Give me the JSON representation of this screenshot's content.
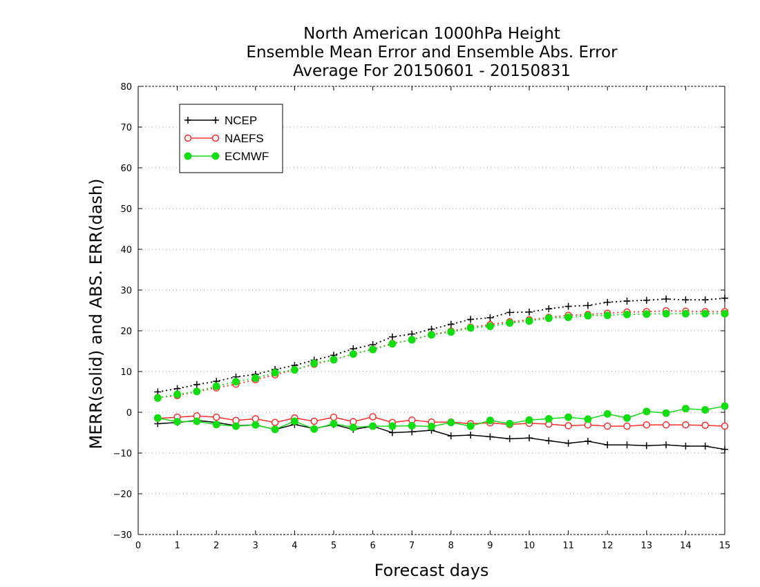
{
  "chart_data": {
    "type": "line",
    "title_lines": [
      "North American 1000hPa Height",
      "Ensemble Mean Error and Ensemble Abs. Error",
      "Average For 20150601 - 20150831"
    ],
    "xlabel": "Forecast days",
    "ylabel": "MERR(solid) and ABS. ERR(dash)",
    "xlim": [
      0,
      15
    ],
    "ylim": [
      -30,
      80
    ],
    "xticks": [
      0,
      1,
      2,
      3,
      4,
      5,
      6,
      7,
      8,
      9,
      10,
      11,
      12,
      13,
      14,
      15
    ],
    "yticks": [
      -30,
      -20,
      -10,
      0,
      10,
      20,
      30,
      40,
      50,
      60,
      70,
      80
    ],
    "grid": true,
    "legend_position": "top-left",
    "x": [
      0.5,
      1,
      1.5,
      2,
      2.5,
      3,
      3.5,
      4,
      4.5,
      5,
      5.5,
      6,
      6.5,
      7,
      7.5,
      8,
      8.5,
      9,
      9.5,
      10,
      10.5,
      11,
      11.5,
      12,
      12.5,
      13,
      13.5,
      14,
      14.5,
      15
    ],
    "series": [
      {
        "name": "NCEP",
        "color": "#000000",
        "marker": "plus",
        "merr": [
          -2.8,
          -2.5,
          -2.0,
          -2.5,
          -3.3,
          -3.1,
          -4.2,
          -3.0,
          -4.0,
          -3.0,
          -4.2,
          -3.4,
          -5.0,
          -4.8,
          -4.4,
          -5.8,
          -5.6,
          -6.0,
          -6.5,
          -6.3,
          -7.0,
          -7.6,
          -7.1,
          -8.0,
          -8.0,
          -8.2,
          -8.0,
          -8.3,
          -8.3,
          -9.1
        ],
        "abs_err": [
          5.0,
          5.8,
          6.8,
          7.6,
          8.7,
          9.3,
          10.5,
          11.5,
          12.8,
          14.0,
          15.6,
          16.6,
          18.5,
          19.2,
          20.4,
          21.6,
          22.8,
          23.2,
          24.5,
          24.6,
          25.4,
          26.0,
          26.2,
          27.0,
          27.3,
          27.5,
          27.8,
          27.6,
          27.6,
          28.0
        ]
      },
      {
        "name": "NAEFS",
        "color": "#ff2a2a",
        "marker": "open-circle",
        "merr": [
          -1.5,
          -1.2,
          -0.9,
          -1.2,
          -2.0,
          -1.6,
          -2.5,
          -1.4,
          -2.2,
          -1.2,
          -2.3,
          -1.1,
          -2.5,
          -1.9,
          -2.4,
          -2.4,
          -2.8,
          -2.6,
          -3.0,
          -2.7,
          -2.9,
          -3.3,
          -3.1,
          -3.4,
          -3.4,
          -3.1,
          -3.1,
          -3.1,
          -3.2,
          -3.4
        ],
        "abs_err": [
          3.6,
          4.1,
          5.1,
          6.0,
          6.9,
          8.0,
          9.2,
          10.4,
          11.8,
          12.9,
          14.3,
          15.5,
          16.9,
          17.8,
          19.1,
          19.9,
          20.9,
          21.5,
          22.2,
          22.7,
          23.3,
          23.8,
          24.0,
          24.3,
          24.6,
          24.7,
          24.9,
          24.8,
          24.7,
          24.7
        ]
      },
      {
        "name": "ECMWF",
        "color": "#11dd11",
        "marker": "filled-circle",
        "merr": [
          -1.4,
          -2.3,
          -2.2,
          -3.0,
          -3.4,
          -3.1,
          -4.2,
          -2.2,
          -4.1,
          -2.8,
          -3.7,
          -3.4,
          -3.4,
          -3.3,
          -3.5,
          -2.5,
          -3.4,
          -2.0,
          -2.8,
          -1.9,
          -1.6,
          -1.2,
          -1.7,
          -0.4,
          -1.4,
          0.2,
          -0.2,
          0.9,
          0.6,
          1.5
        ],
        "abs_err": [
          3.5,
          4.4,
          5.1,
          6.4,
          7.5,
          8.4,
          9.7,
          10.4,
          12.0,
          12.9,
          14.3,
          15.4,
          16.8,
          17.8,
          19.0,
          19.7,
          20.7,
          21.1,
          21.9,
          22.4,
          23.1,
          23.3,
          23.7,
          23.8,
          24.0,
          24.1,
          24.2,
          24.2,
          24.2,
          24.2
        ]
      }
    ]
  }
}
